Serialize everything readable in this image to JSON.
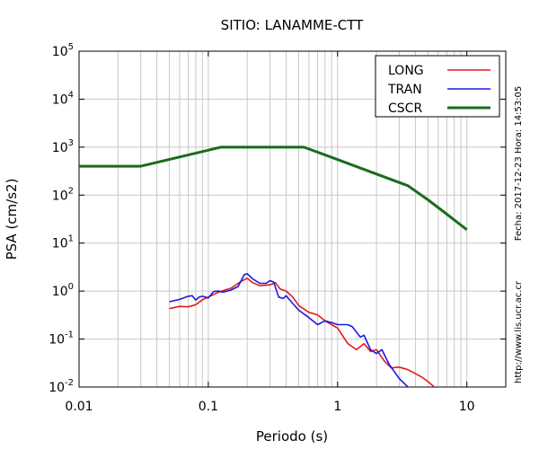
{
  "chart_data": {
    "type": "line",
    "title": "SITIO: LANAMME-CTT",
    "xlabel": "Periodo (s)",
    "ylabel": "PSA (cm/s2)",
    "x_scale": "log",
    "y_scale": "log",
    "xlim": [
      0.01,
      20
    ],
    "ylim": [
      0.01,
      100000
    ],
    "grid": true,
    "legend_position": "top-right",
    "x_ticks": [
      {
        "value": 0.01,
        "label": "0.01"
      },
      {
        "value": 0.1,
        "label": "0.1"
      },
      {
        "value": 1,
        "label": "1"
      },
      {
        "value": 10,
        "label": "10"
      }
    ],
    "y_ticks": [
      {
        "value": 0.01,
        "base": "10",
        "exp": "-2"
      },
      {
        "value": 0.1,
        "base": "10",
        "exp": "-1"
      },
      {
        "value": 1,
        "base": "10",
        "exp": "0"
      },
      {
        "value": 10,
        "base": "10",
        "exp": "1"
      },
      {
        "value": 100,
        "base": "10",
        "exp": "2"
      },
      {
        "value": 1000,
        "base": "10",
        "exp": "3"
      },
      {
        "value": 10000,
        "base": "10",
        "exp": "4"
      },
      {
        "value": 100000,
        "base": "10",
        "exp": "5"
      }
    ],
    "side_text_1": "Fecha: 2017-12-23 Hora: 14:53:05",
    "side_text_2": "http://www.lis.ucr.ac.cr",
    "series": [
      {
        "name": "LONG",
        "color": "#e31a1c",
        "points": [
          [
            0.05,
            0.43
          ],
          [
            0.06,
            0.48
          ],
          [
            0.07,
            0.47
          ],
          [
            0.08,
            0.52
          ],
          [
            0.09,
            0.66
          ],
          [
            0.1,
            0.75
          ],
          [
            0.12,
            0.95
          ],
          [
            0.15,
            1.15
          ],
          [
            0.18,
            1.6
          ],
          [
            0.2,
            1.85
          ],
          [
            0.22,
            1.5
          ],
          [
            0.25,
            1.3
          ],
          [
            0.3,
            1.35
          ],
          [
            0.33,
            1.5
          ],
          [
            0.36,
            1.1
          ],
          [
            0.4,
            1.0
          ],
          [
            0.45,
            0.75
          ],
          [
            0.5,
            0.5
          ],
          [
            0.6,
            0.36
          ],
          [
            0.7,
            0.32
          ],
          [
            0.8,
            0.24
          ],
          [
            0.9,
            0.2
          ],
          [
            1.0,
            0.17
          ],
          [
            1.2,
            0.08
          ],
          [
            1.4,
            0.06
          ],
          [
            1.6,
            0.08
          ],
          [
            1.8,
            0.055
          ],
          [
            2.0,
            0.06
          ],
          [
            2.3,
            0.035
          ],
          [
            2.6,
            0.025
          ],
          [
            3.0,
            0.026
          ],
          [
            3.5,
            0.023
          ],
          [
            4.0,
            0.019
          ],
          [
            4.5,
            0.016
          ],
          [
            5.0,
            0.013
          ],
          [
            5.6,
            0.01
          ]
        ]
      },
      {
        "name": "TRAN",
        "color": "#1a1ae3",
        "points": [
          [
            0.05,
            0.6
          ],
          [
            0.06,
            0.67
          ],
          [
            0.07,
            0.78
          ],
          [
            0.075,
            0.8
          ],
          [
            0.08,
            0.65
          ],
          [
            0.085,
            0.75
          ],
          [
            0.09,
            0.78
          ],
          [
            0.1,
            0.72
          ],
          [
            0.11,
            0.98
          ],
          [
            0.12,
            1.0
          ],
          [
            0.13,
            0.95
          ],
          [
            0.15,
            1.05
          ],
          [
            0.17,
            1.25
          ],
          [
            0.19,
            2.2
          ],
          [
            0.2,
            2.3
          ],
          [
            0.22,
            1.8
          ],
          [
            0.25,
            1.45
          ],
          [
            0.28,
            1.45
          ],
          [
            0.3,
            1.65
          ],
          [
            0.32,
            1.55
          ],
          [
            0.35,
            0.75
          ],
          [
            0.38,
            0.7
          ],
          [
            0.4,
            0.8
          ],
          [
            0.45,
            0.55
          ],
          [
            0.5,
            0.4
          ],
          [
            0.6,
            0.28
          ],
          [
            0.7,
            0.2
          ],
          [
            0.8,
            0.24
          ],
          [
            0.9,
            0.22
          ],
          [
            1.0,
            0.2
          ],
          [
            1.2,
            0.2
          ],
          [
            1.3,
            0.18
          ],
          [
            1.5,
            0.11
          ],
          [
            1.6,
            0.12
          ],
          [
            1.8,
            0.06
          ],
          [
            2.0,
            0.05
          ],
          [
            2.2,
            0.06
          ],
          [
            2.5,
            0.03
          ],
          [
            3.0,
            0.015
          ],
          [
            3.5,
            0.01
          ]
        ]
      },
      {
        "name": "CSCR",
        "color": "#1a6b1a",
        "points": [
          [
            0.01,
            400
          ],
          [
            0.03,
            400
          ],
          [
            0.125,
            1000
          ],
          [
            0.55,
            1000
          ],
          [
            1.0,
            550
          ],
          [
            2.0,
            275
          ],
          [
            3.5,
            157
          ],
          [
            5.0,
            80
          ],
          [
            7.0,
            40
          ],
          [
            10.0,
            19
          ]
        ]
      }
    ]
  }
}
